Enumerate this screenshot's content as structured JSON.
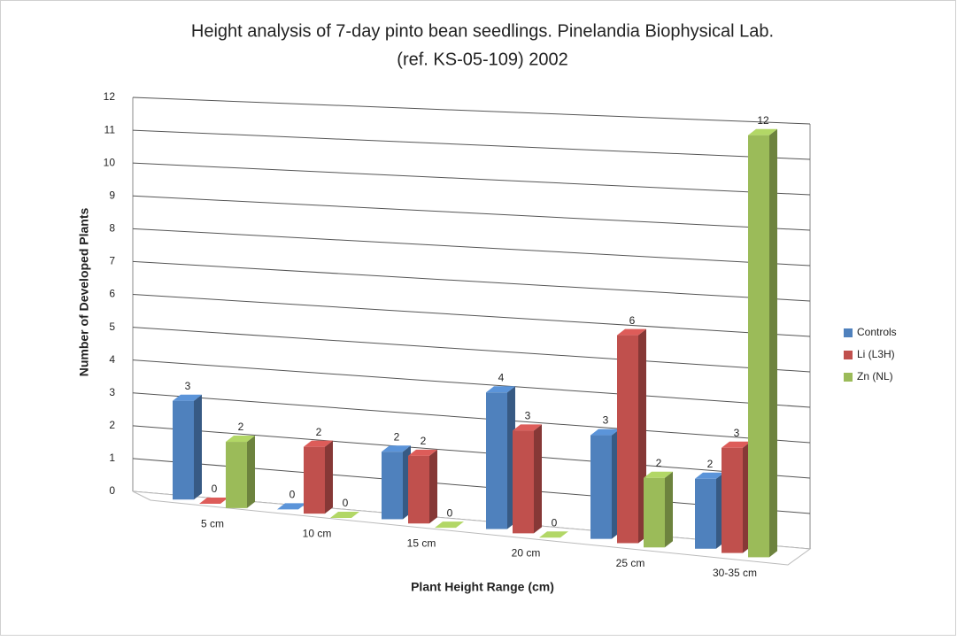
{
  "chart_data": {
    "type": "bar3d",
    "title": [
      "Height analysis of 7-day pinto bean seedlings.  Pinelandia Biophysical Lab.",
      "(ref. KS-05-109) 2002"
    ],
    "x_label": "Plant Height Range (cm)",
    "y_label": "Number of Developed Plants",
    "categories": [
      "5 cm",
      "10 cm",
      "15 cm",
      "20 cm",
      "25 cm",
      "30-35 cm"
    ],
    "series": [
      {
        "name": "Controls",
        "color": "#4f81bd",
        "values": [
          3,
          0,
          2,
          4,
          3,
          2
        ]
      },
      {
        "name": "Li (L3H)",
        "color": "#c0504d",
        "values": [
          0,
          2,
          2,
          3,
          6,
          3
        ]
      },
      {
        "name": "Zn (NL)",
        "color": "#9bbb59",
        "values": [
          2,
          0,
          0,
          0,
          2,
          12
        ]
      }
    ],
    "ylim": [
      0,
      12
    ],
    "yticks": [
      0,
      1,
      2,
      3,
      4,
      5,
      6,
      7,
      8,
      9,
      10,
      11,
      12
    ],
    "grid": true,
    "legend": "right"
  }
}
